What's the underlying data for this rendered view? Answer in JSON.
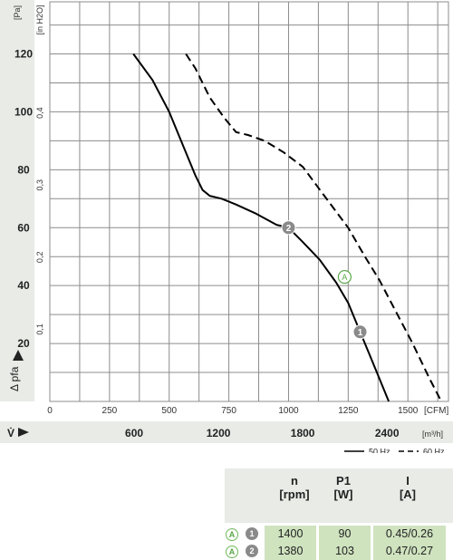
{
  "chart_data": {
    "type": "line",
    "y_unit_pa": "[Pa]",
    "y_unit_inh2o": "[in H2O]",
    "y_ticks_pa": [
      20,
      40,
      60,
      80,
      100,
      120
    ],
    "y_ticks_inh2o": [
      "0,1",
      "0,2",
      "0,3",
      "0,4"
    ],
    "ylabel": "Δ pfa",
    "x_unit_cfm": "[CFM]",
    "x_ticks_cfm": [
      0,
      250,
      500,
      750,
      1000,
      1250,
      1500
    ],
    "x_unit_m3h": "[m³/h]",
    "x_ticks_m3h": [
      600,
      1200,
      1800,
      2400
    ],
    "xlabel": "V̇",
    "xlim_cfm": [
      0,
      1670
    ],
    "ylim_pa": [
      0,
      138
    ],
    "series": [
      {
        "name": "50 Hz",
        "style": "solid",
        "points": [
          [
            350,
            120
          ],
          [
            430,
            111
          ],
          [
            500,
            100
          ],
          [
            560,
            88
          ],
          [
            610,
            78
          ],
          [
            640,
            73
          ],
          [
            670,
            71
          ],
          [
            720,
            70
          ],
          [
            780,
            68
          ],
          [
            860,
            65
          ],
          [
            950,
            61
          ],
          [
            1000,
            60
          ],
          [
            1060,
            55
          ],
          [
            1130,
            49
          ],
          [
            1200,
            41
          ],
          [
            1250,
            34
          ],
          [
            1300,
            24
          ],
          [
            1340,
            16
          ],
          [
            1380,
            8
          ],
          [
            1420,
            0
          ]
        ]
      },
      {
        "name": "60 Hz",
        "style": "dashed",
        "points": [
          [
            570,
            120
          ],
          [
            610,
            115
          ],
          [
            670,
            105
          ],
          [
            730,
            98
          ],
          [
            780,
            93
          ],
          [
            830,
            92
          ],
          [
            900,
            90
          ],
          [
            980,
            86
          ],
          [
            1060,
            81
          ],
          [
            1150,
            71
          ],
          [
            1250,
            60
          ],
          [
            1320,
            50
          ],
          [
            1380,
            42
          ],
          [
            1450,
            31
          ],
          [
            1520,
            20
          ],
          [
            1590,
            8
          ],
          [
            1640,
            0
          ]
        ]
      }
    ],
    "markers": [
      {
        "label": "2",
        "x": 1000,
        "y": 60,
        "kind": "operating-point"
      },
      {
        "label": "1",
        "x": 1300,
        "y": 24,
        "kind": "operating-point"
      },
      {
        "label": "A",
        "x": 1235,
        "y": 43,
        "kind": "curve-label"
      }
    ],
    "legend": {
      "placement": "bottom-right"
    }
  },
  "table": {
    "headers": [
      {
        "symbol": "n",
        "unit": "[rpm]"
      },
      {
        "symbol": "P1",
        "unit": "[W]"
      },
      {
        "symbol": "I",
        "unit": "[A]"
      }
    ],
    "rows": [
      {
        "curve": "A",
        "point": "1",
        "n": "1400",
        "p1": "90",
        "i": "0.45/0.26"
      },
      {
        "curve": "A",
        "point": "2",
        "n": "1380",
        "p1": "103",
        "i": "0.47/0.27"
      }
    ]
  },
  "colors": {
    "band": "#e8ebe6",
    "cell": "#cfe3bf",
    "curve_label": "#5aa847",
    "marker": "#8a8a8a",
    "grid": "#8c8c8c",
    "line": "#000000"
  }
}
